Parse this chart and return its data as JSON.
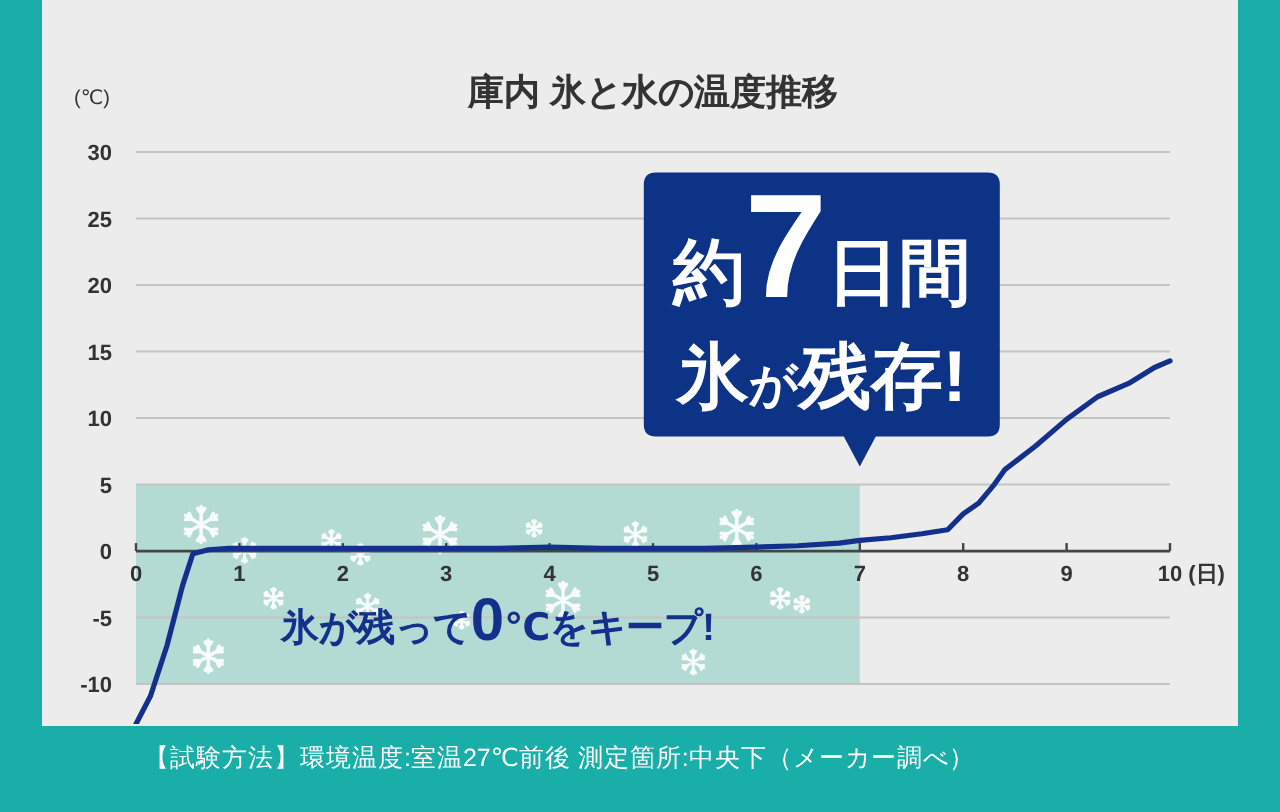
{
  "chart_data": {
    "type": "line",
    "title": "庫内 氷と水の温度推移",
    "xlabel": "(日)",
    "ylabel": "(℃)",
    "x": [
      0,
      0.14,
      0.3,
      0.45,
      0.55,
      0.7,
      0.9,
      1.5,
      2,
      2.5,
      3,
      3.5,
      4,
      4.5,
      5,
      5.5,
      6,
      6.4,
      6.8,
      7,
      7.3,
      7.6,
      7.85,
      8.0,
      8.15,
      8.3,
      8.4,
      8.7,
      9.0,
      9.3,
      9.6,
      9.85,
      10
    ],
    "series": [
      {
        "color": "#13318c",
        "values": [
          -13,
          -10.9,
          -7.1,
          -2.6,
          -0.2,
          0.1,
          0.2,
          0.2,
          0.2,
          0.2,
          0.2,
          0.2,
          0.3,
          0.2,
          0.2,
          0.2,
          0.3,
          0.4,
          0.6,
          0.8,
          1.0,
          1.3,
          1.6,
          2.8,
          3.6,
          5.0,
          6.1,
          7.9,
          9.9,
          11.6,
          12.6,
          13.8,
          14.3
        ]
      }
    ],
    "xlim": [
      0,
      10
    ],
    "xticks": [
      0,
      1,
      2,
      3,
      4,
      5,
      6,
      7,
      8,
      9,
      10
    ],
    "ylim": [
      -13,
      30
    ],
    "yticks": [
      -10,
      -5,
      0,
      5,
      10,
      15,
      20,
      25,
      30
    ],
    "grid": "y",
    "bands": [
      {
        "axis": "x",
        "from": 0,
        "to": 7,
        "label": "氷が残って0℃をキープ!",
        "color": "#b3dbd4"
      }
    ],
    "annotations": [
      "約7日間氷が残存!",
      "【試験方法】環境温度:室温27℃前後 測定箇所:中央下（メーカー調べ）"
    ]
  }
}
